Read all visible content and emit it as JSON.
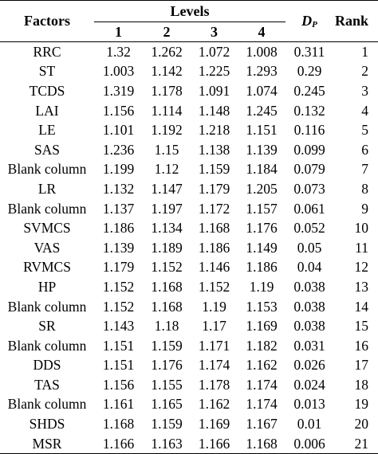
{
  "table": {
    "header": {
      "factors": "Factors",
      "levels": "Levels",
      "level_numbers": [
        "1",
        "2",
        "3",
        "4"
      ],
      "dp_main": "D",
      "dp_sub": "P",
      "rank": "Rank"
    },
    "rows": [
      {
        "factor": "RRC",
        "l1": "1.32",
        "l2": "1.262",
        "l3": "1.072",
        "l4": "1.008",
        "dp": "0.311",
        "rank": "1"
      },
      {
        "factor": "ST",
        "l1": "1.003",
        "l2": "1.142",
        "l3": "1.225",
        "l4": "1.293",
        "dp": "0.29",
        "rank": "2"
      },
      {
        "factor": "TCDS",
        "l1": "1.319",
        "l2": "1.178",
        "l3": "1.091",
        "l4": "1.074",
        "dp": "0.245",
        "rank": "3"
      },
      {
        "factor": "LAI",
        "l1": "1.156",
        "l2": "1.114",
        "l3": "1.148",
        "l4": "1.245",
        "dp": "0.132",
        "rank": "4"
      },
      {
        "factor": "LE",
        "l1": "1.101",
        "l2": "1.192",
        "l3": "1.218",
        "l4": "1.151",
        "dp": "0.116",
        "rank": "5"
      },
      {
        "factor": "SAS",
        "l1": "1.236",
        "l2": "1.15",
        "l3": "1.138",
        "l4": "1.139",
        "dp": "0.099",
        "rank": "6"
      },
      {
        "factor": "Blank column",
        "l1": "1.199",
        "l2": "1.12",
        "l3": "1.159",
        "l4": "1.184",
        "dp": "0.079",
        "rank": "7"
      },
      {
        "factor": "LR",
        "l1": "1.132",
        "l2": "1.147",
        "l3": "1.179",
        "l4": "1.205",
        "dp": "0.073",
        "rank": "8"
      },
      {
        "factor": "Blank column",
        "l1": "1.137",
        "l2": "1.197",
        "l3": "1.172",
        "l4": "1.157",
        "dp": "0.061",
        "rank": "9"
      },
      {
        "factor": "SVMCS",
        "l1": "1.186",
        "l2": "1.134",
        "l3": "1.168",
        "l4": "1.176",
        "dp": "0.052",
        "rank": "10"
      },
      {
        "factor": "VAS",
        "l1": "1.139",
        "l2": "1.189",
        "l3": "1.186",
        "l4": "1.149",
        "dp": "0.05",
        "rank": "11"
      },
      {
        "factor": "RVMCS",
        "l1": "1.179",
        "l2": "1.152",
        "l3": "1.146",
        "l4": "1.186",
        "dp": "0.04",
        "rank": "12"
      },
      {
        "factor": "HP",
        "l1": "1.152",
        "l2": "1.168",
        "l3": "1.152",
        "l4": "1.19",
        "dp": "0.038",
        "rank": "13"
      },
      {
        "factor": "Blank column",
        "l1": "1.152",
        "l2": "1.168",
        "l3": "1.19",
        "l4": "1.153",
        "dp": "0.038",
        "rank": "14"
      },
      {
        "factor": "SR",
        "l1": "1.143",
        "l2": "1.18",
        "l3": "1.17",
        "l4": "1.169",
        "dp": "0.038",
        "rank": "15"
      },
      {
        "factor": "Blank column",
        "l1": "1.151",
        "l2": "1.159",
        "l3": "1.171",
        "l4": "1.182",
        "dp": "0.031",
        "rank": "16"
      },
      {
        "factor": "DDS",
        "l1": "1.151",
        "l2": "1.176",
        "l3": "1.174",
        "l4": "1.162",
        "dp": "0.026",
        "rank": "17"
      },
      {
        "factor": "TAS",
        "l1": "1.156",
        "l2": "1.155",
        "l3": "1.178",
        "l4": "1.174",
        "dp": "0.024",
        "rank": "18"
      },
      {
        "factor": "Blank column",
        "l1": "1.161",
        "l2": "1.165",
        "l3": "1.162",
        "l4": "1.174",
        "dp": "0.013",
        "rank": "19"
      },
      {
        "factor": "SHDS",
        "l1": "1.168",
        "l2": "1.159",
        "l3": "1.169",
        "l4": "1.167",
        "dp": "0.01",
        "rank": "20"
      },
      {
        "factor": "MSR",
        "l1": "1.166",
        "l2": "1.163",
        "l3": "1.166",
        "l4": "1.168",
        "dp": "0.006",
        "rank": "21"
      }
    ]
  }
}
